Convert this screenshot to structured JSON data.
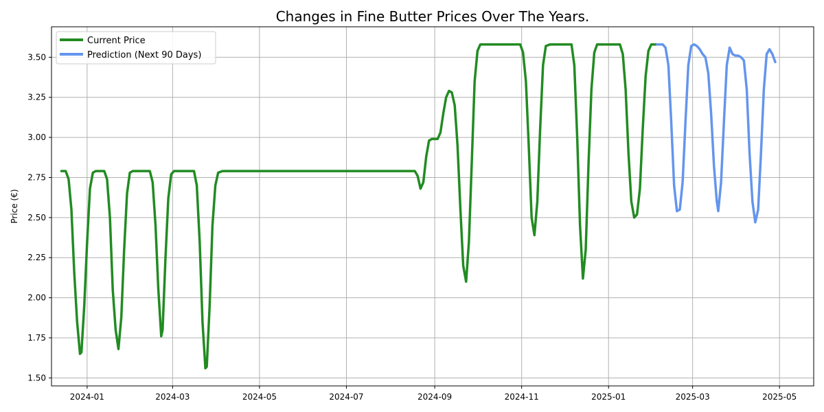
{
  "chart_data": {
    "type": "line",
    "title": "Changes in Fine Butter Prices Over The Years.",
    "xlabel": "",
    "ylabel": "Price (€)",
    "xlim": [
      "2023-12-07",
      "2025-05-25"
    ],
    "ylim": [
      1.45,
      3.69
    ],
    "grid": true,
    "legend_placement": "top-left",
    "x_ticks": [
      "2024-01-01",
      "2024-03-01",
      "2024-05-01",
      "2024-07-01",
      "2024-09-01",
      "2024-11-01",
      "2025-01-01",
      "2025-03-01",
      "2025-05-01"
    ],
    "x_tick_labels": [
      "2024-01",
      "2024-03",
      "2024-05",
      "2024-07",
      "2024-09",
      "2024-11",
      "2025-01",
      "2025-03",
      "2025-05"
    ],
    "y_ticks": [
      1.5,
      1.75,
      2.0,
      2.25,
      2.5,
      2.75,
      3.0,
      3.25,
      3.5
    ],
    "y_tick_labels": [
      "1.50",
      "1.75",
      "2.00",
      "2.25",
      "2.50",
      "2.75",
      "3.00",
      "3.25",
      "3.50"
    ],
    "series": [
      {
        "name": "Current Price",
        "color": "#228B22",
        "points": [
          [
            "2023-12-14",
            2.79
          ],
          [
            "2023-12-17",
            2.79
          ],
          [
            "2023-12-19",
            2.74
          ],
          [
            "2023-12-21",
            2.55
          ],
          [
            "2023-12-23",
            2.15
          ],
          [
            "2023-12-25",
            1.85
          ],
          [
            "2023-12-27",
            1.65
          ],
          [
            "2023-12-28",
            1.66
          ],
          [
            "2023-12-30",
            1.95
          ],
          [
            "2024-01-01",
            2.35
          ],
          [
            "2024-01-03",
            2.68
          ],
          [
            "2024-01-05",
            2.78
          ],
          [
            "2024-01-07",
            2.79
          ],
          [
            "2024-01-13",
            2.79
          ],
          [
            "2024-01-15",
            2.74
          ],
          [
            "2024-01-17",
            2.5
          ],
          [
            "2024-01-19",
            2.05
          ],
          [
            "2024-01-21",
            1.8
          ],
          [
            "2024-01-23",
            1.68
          ],
          [
            "2024-01-25",
            1.88
          ],
          [
            "2024-01-27",
            2.3
          ],
          [
            "2024-01-29",
            2.65
          ],
          [
            "2024-01-31",
            2.78
          ],
          [
            "2024-02-02",
            2.79
          ],
          [
            "2024-02-14",
            2.79
          ],
          [
            "2024-02-16",
            2.72
          ],
          [
            "2024-02-18",
            2.45
          ],
          [
            "2024-02-20",
            2.05
          ],
          [
            "2024-02-22",
            1.76
          ],
          [
            "2024-02-23",
            1.8
          ],
          [
            "2024-02-25",
            2.25
          ],
          [
            "2024-02-27",
            2.62
          ],
          [
            "2024-02-29",
            2.77
          ],
          [
            "2024-03-02",
            2.79
          ],
          [
            "2024-03-16",
            2.79
          ],
          [
            "2024-03-18",
            2.7
          ],
          [
            "2024-03-20",
            2.35
          ],
          [
            "2024-03-22",
            1.85
          ],
          [
            "2024-03-24",
            1.56
          ],
          [
            "2024-03-25",
            1.57
          ],
          [
            "2024-03-27",
            1.95
          ],
          [
            "2024-03-29",
            2.45
          ],
          [
            "2024-03-31",
            2.7
          ],
          [
            "2024-04-02",
            2.78
          ],
          [
            "2024-04-05",
            2.79
          ],
          [
            "2024-08-18",
            2.79
          ],
          [
            "2024-08-20",
            2.76
          ],
          [
            "2024-08-22",
            2.68
          ],
          [
            "2024-08-24",
            2.72
          ],
          [
            "2024-08-26",
            2.88
          ],
          [
            "2024-08-28",
            2.98
          ],
          [
            "2024-08-30",
            2.99
          ],
          [
            "2024-09-03",
            2.99
          ],
          [
            "2024-09-05",
            3.03
          ],
          [
            "2024-09-07",
            3.15
          ],
          [
            "2024-09-09",
            3.25
          ],
          [
            "2024-09-11",
            3.29
          ],
          [
            "2024-09-13",
            3.28
          ],
          [
            "2024-09-15",
            3.2
          ],
          [
            "2024-09-17",
            2.95
          ],
          [
            "2024-09-19",
            2.55
          ],
          [
            "2024-09-21",
            2.2
          ],
          [
            "2024-09-23",
            2.1
          ],
          [
            "2024-09-25",
            2.35
          ],
          [
            "2024-09-27",
            2.85
          ],
          [
            "2024-09-29",
            3.35
          ],
          [
            "2024-10-01",
            3.54
          ],
          [
            "2024-10-03",
            3.58
          ],
          [
            "2024-10-05",
            3.58
          ],
          [
            "2024-10-29",
            3.58
          ],
          [
            "2024-10-31",
            3.58
          ],
          [
            "2024-11-02",
            3.53
          ],
          [
            "2024-11-04",
            3.35
          ],
          [
            "2024-11-06",
            2.95
          ],
          [
            "2024-11-08",
            2.5
          ],
          [
            "2024-11-10",
            2.39
          ],
          [
            "2024-11-12",
            2.6
          ],
          [
            "2024-11-14",
            3.05
          ],
          [
            "2024-11-16",
            3.45
          ],
          [
            "2024-11-18",
            3.57
          ],
          [
            "2024-11-21",
            3.58
          ],
          [
            "2024-12-06",
            3.58
          ],
          [
            "2024-12-08",
            3.45
          ],
          [
            "2024-12-10",
            3.0
          ],
          [
            "2024-12-12",
            2.45
          ],
          [
            "2024-12-14",
            2.12
          ],
          [
            "2024-12-16",
            2.3
          ],
          [
            "2024-12-18",
            2.85
          ],
          [
            "2024-12-20",
            3.3
          ],
          [
            "2024-12-22",
            3.53
          ],
          [
            "2024-12-24",
            3.58
          ],
          [
            "2025-01-09",
            3.58
          ],
          [
            "2025-01-11",
            3.52
          ],
          [
            "2025-01-13",
            3.3
          ],
          [
            "2025-01-15",
            2.9
          ],
          [
            "2025-01-17",
            2.6
          ],
          [
            "2025-01-19",
            2.5
          ],
          [
            "2025-01-21",
            2.52
          ],
          [
            "2025-01-23",
            2.68
          ],
          [
            "2025-01-25",
            3.05
          ],
          [
            "2025-01-27",
            3.38
          ],
          [
            "2025-01-29",
            3.54
          ],
          [
            "2025-01-31",
            3.58
          ],
          [
            "2025-02-04",
            3.58
          ]
        ]
      },
      {
        "name": "Prediction (Next 90 Days)",
        "color": "#6495ED",
        "points": [
          [
            "2025-02-04",
            3.58
          ],
          [
            "2025-02-08",
            3.58
          ],
          [
            "2025-02-10",
            3.56
          ],
          [
            "2025-02-12",
            3.45
          ],
          [
            "2025-02-14",
            3.1
          ],
          [
            "2025-02-16",
            2.7
          ],
          [
            "2025-02-18",
            2.54
          ],
          [
            "2025-02-20",
            2.55
          ],
          [
            "2025-02-22",
            2.72
          ],
          [
            "2025-02-24",
            3.1
          ],
          [
            "2025-02-26",
            3.45
          ],
          [
            "2025-02-28",
            3.57
          ],
          [
            "2025-03-02",
            3.58
          ],
          [
            "2025-03-04",
            3.57
          ],
          [
            "2025-03-06",
            3.55
          ],
          [
            "2025-03-08",
            3.52
          ],
          [
            "2025-03-10",
            3.5
          ],
          [
            "2025-03-12",
            3.4
          ],
          [
            "2025-03-14",
            3.15
          ],
          [
            "2025-03-16",
            2.82
          ],
          [
            "2025-03-18",
            2.6
          ],
          [
            "2025-03-19",
            2.54
          ],
          [
            "2025-03-21",
            2.72
          ],
          [
            "2025-03-23",
            3.1
          ],
          [
            "2025-03-25",
            3.45
          ],
          [
            "2025-03-27",
            3.56
          ],
          [
            "2025-03-29",
            3.52
          ],
          [
            "2025-03-31",
            3.51
          ],
          [
            "2025-04-02",
            3.51
          ],
          [
            "2025-04-04",
            3.5
          ],
          [
            "2025-04-06",
            3.48
          ],
          [
            "2025-04-08",
            3.3
          ],
          [
            "2025-04-10",
            2.9
          ],
          [
            "2025-04-12",
            2.6
          ],
          [
            "2025-04-14",
            2.47
          ],
          [
            "2025-04-16",
            2.55
          ],
          [
            "2025-04-18",
            2.9
          ],
          [
            "2025-04-20",
            3.3
          ],
          [
            "2025-04-22",
            3.52
          ],
          [
            "2025-04-24",
            3.55
          ],
          [
            "2025-04-26",
            3.52
          ],
          [
            "2025-04-28",
            3.47
          ]
        ]
      }
    ]
  }
}
